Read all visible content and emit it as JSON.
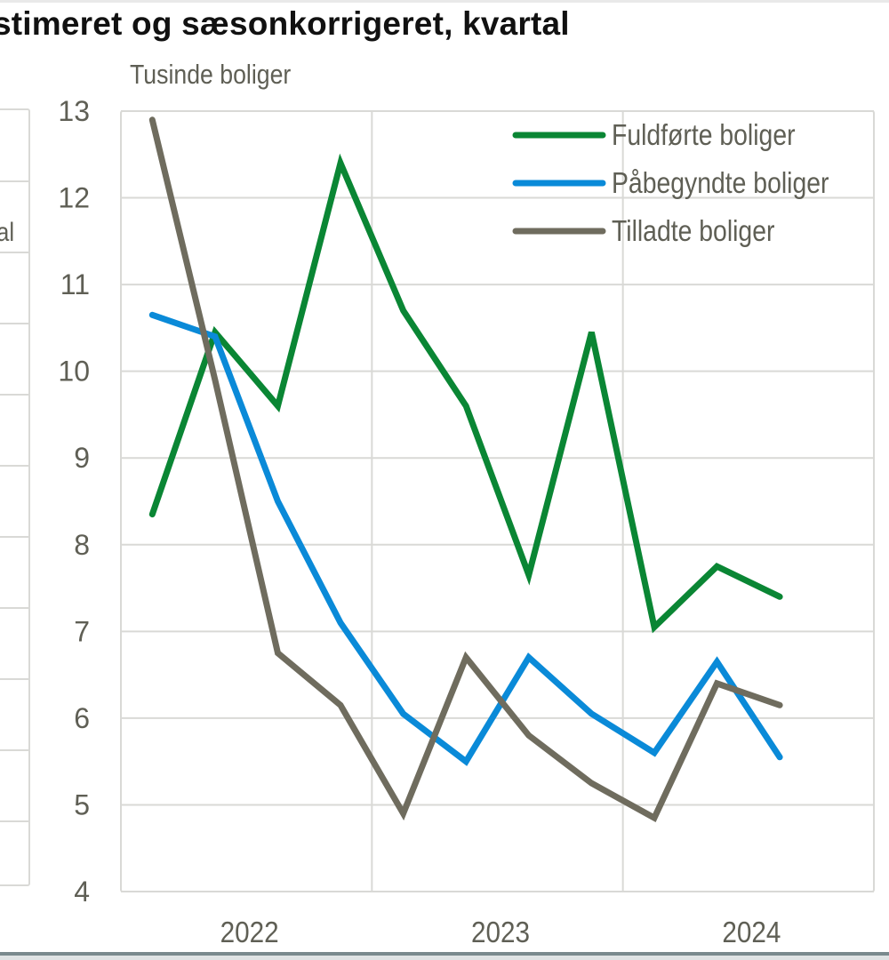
{
  "page": {
    "title_fragment": "stimeret og sæsonkorrigeret, kvartal",
    "left_panel_fragment": "al"
  },
  "chart_data": {
    "type": "line",
    "title": "stimeret og sæsonkorrigeret, kvartal",
    "ylabel": "Tusinde boliger",
    "xlabel": "",
    "ylim": [
      4,
      13
    ],
    "yticks": [
      4,
      5,
      6,
      7,
      8,
      9,
      10,
      11,
      12,
      13
    ],
    "x": [
      "2022K1",
      "2022K2",
      "2022K3",
      "2022K4",
      "2023K1",
      "2023K2",
      "2023K3",
      "2023K4",
      "2024K1",
      "2024K2",
      "2024K3"
    ],
    "xtick_labels": [
      "2022",
      "2023",
      "2024"
    ],
    "grid": true,
    "legend_position": "top-right",
    "series": [
      {
        "name": "Fuldførte boliger",
        "color": "#0a8634",
        "values": [
          8.35,
          10.45,
          9.6,
          12.4,
          10.7,
          9.6,
          7.65,
          10.45,
          7.05,
          7.75,
          7.4
        ]
      },
      {
        "name": "Påbegyndte boliger",
        "color": "#0a8ad8",
        "values": [
          10.65,
          10.4,
          8.5,
          7.1,
          6.05,
          5.5,
          6.7,
          6.05,
          5.6,
          6.65,
          5.55
        ]
      },
      {
        "name": "Tilladte boliger",
        "color": "#6f6c5e",
        "values": [
          12.9,
          9.9,
          6.75,
          6.15,
          4.9,
          6.7,
          5.8,
          5.25,
          4.85,
          6.4,
          6.15
        ]
      }
    ]
  }
}
